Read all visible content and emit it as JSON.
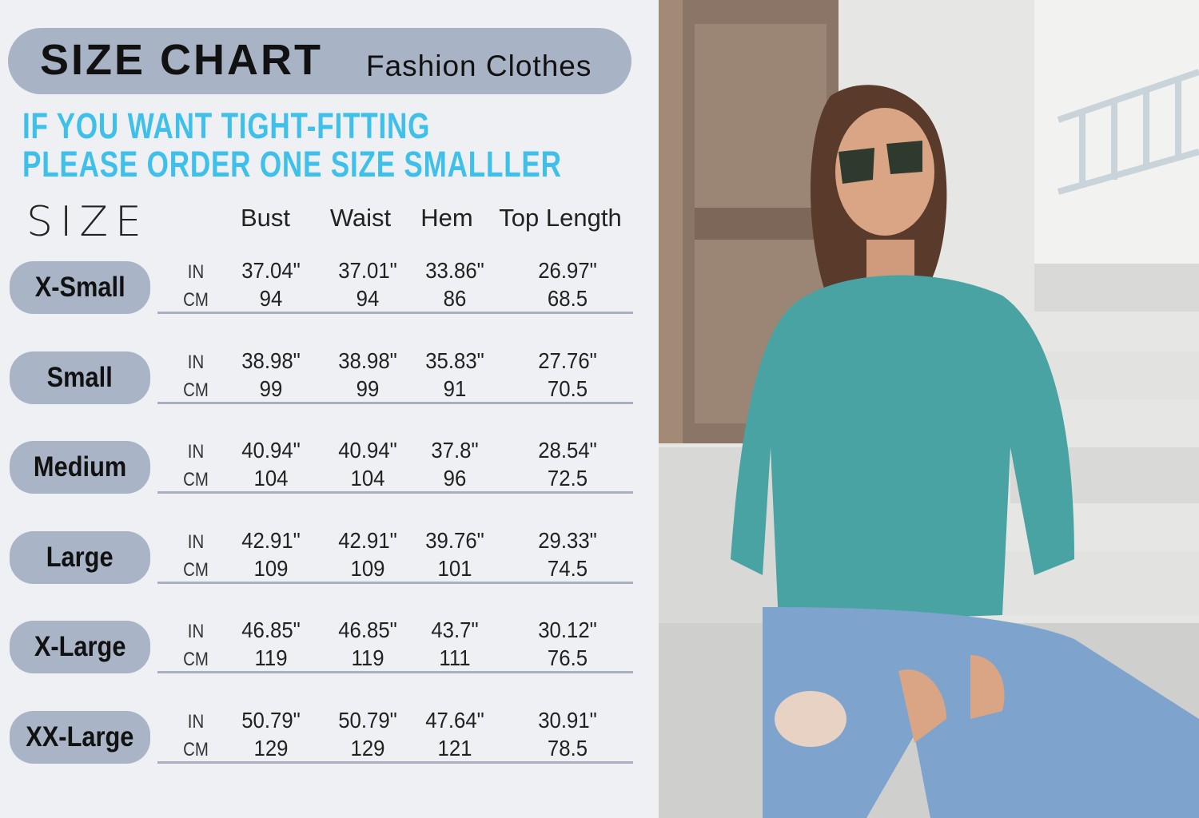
{
  "header": {
    "title": "SIZE CHART",
    "subtitle": "Fashion Clothes"
  },
  "notice": {
    "line1": "IF YOU WANT TIGHT-FITTING",
    "line2": "PLEASE ORDER ONE SIZE SMALLLER"
  },
  "table": {
    "size_label": "SIZE",
    "columns": [
      "Bust",
      "Waist",
      "Hem",
      "Top Length"
    ],
    "unit_in": "IN",
    "unit_cm": "CM",
    "rows": [
      {
        "size": "X-Small",
        "in": [
          "37.04\"",
          "37.01\"",
          "33.86\"",
          "26.97\""
        ],
        "cm": [
          "94",
          "94",
          "86",
          "68.5"
        ]
      },
      {
        "size": "Small",
        "in": [
          "38.98\"",
          "38.98\"",
          "35.83\"",
          "27.76\""
        ],
        "cm": [
          "99",
          "99",
          "91",
          "70.5"
        ]
      },
      {
        "size": "Medium",
        "in": [
          "40.94\"",
          "40.94\"",
          "37.8\"",
          "28.54\""
        ],
        "cm": [
          "104",
          "104",
          "96",
          "72.5"
        ]
      },
      {
        "size": "Large",
        "in": [
          "42.91\"",
          "42.91\"",
          "39.76\"",
          "29.33\""
        ],
        "cm": [
          "109",
          "109",
          "101",
          "74.5"
        ]
      },
      {
        "size": "X-Large",
        "in": [
          "46.85\"",
          "46.85\"",
          "43.7\"",
          "30.12\""
        ],
        "cm": [
          "119",
          "119",
          "111",
          "76.5"
        ]
      },
      {
        "size": "XX-Large",
        "in": [
          "50.79\"",
          "50.79\"",
          "47.64\"",
          "30.91\""
        ],
        "cm": [
          "129",
          "129",
          "121",
          "78.5"
        ]
      }
    ]
  },
  "colors": {
    "accent_blue": "#3fc0ea",
    "pill": "#a9b4c6",
    "sweater": "#4aa3a3"
  },
  "photo": {
    "subject": "model-in-teal-quarter-zip-sweatshirt"
  }
}
